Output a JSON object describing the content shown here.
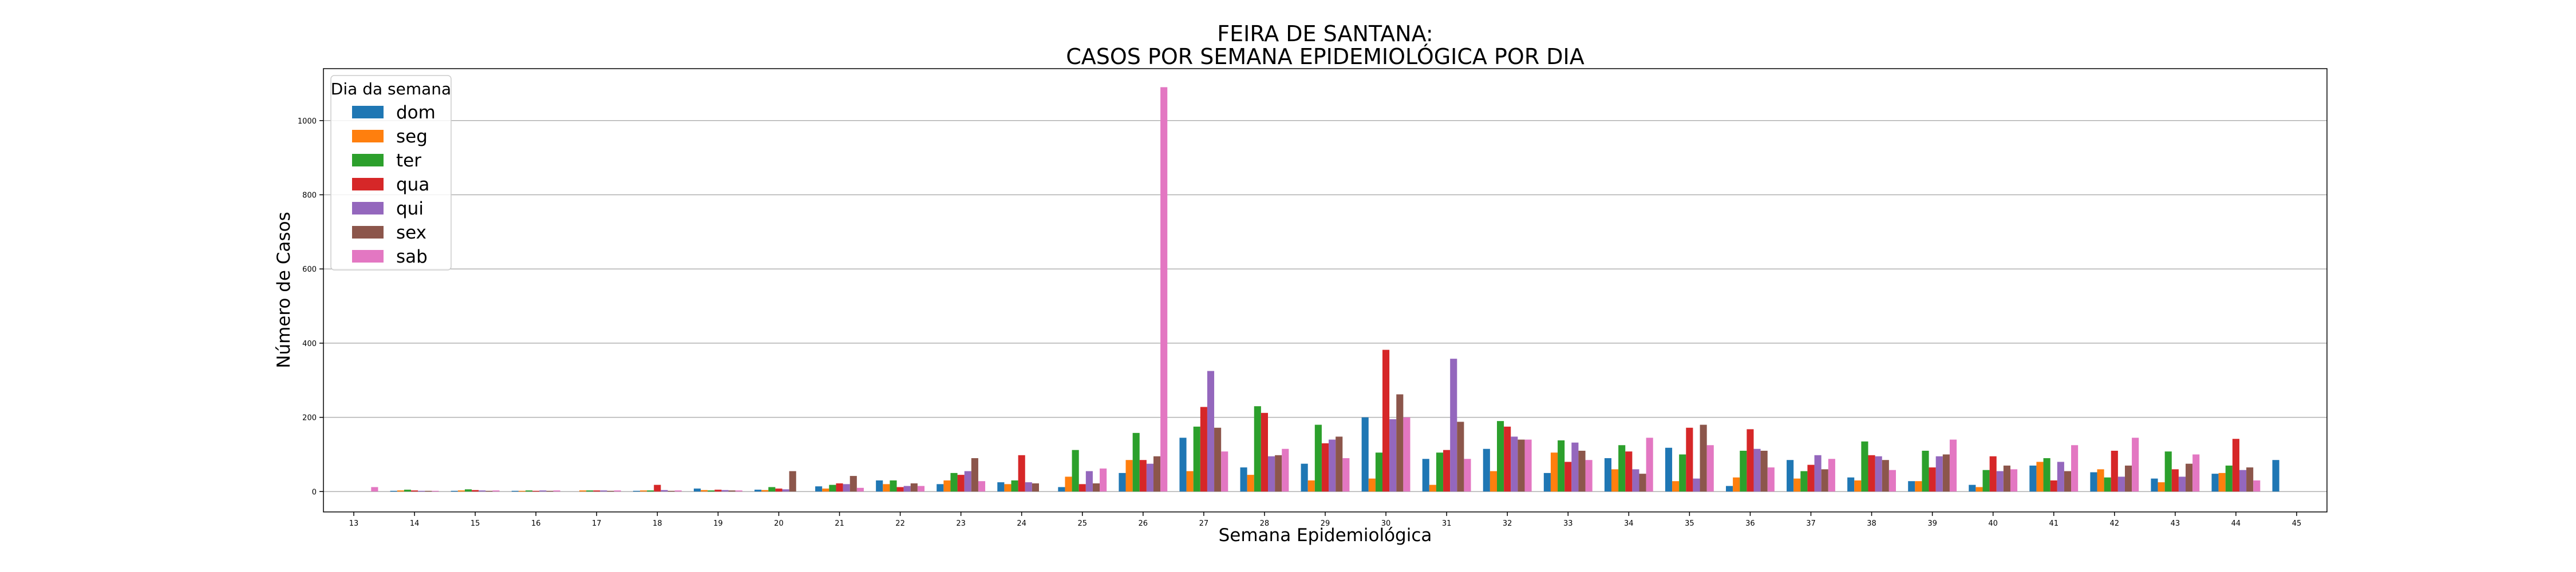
{
  "chart_data": {
    "type": "bar",
    "title": [
      "FEIRA DE SANTANA:",
      "CASOS POR SEMANA EPIDEMIOLÓGICA POR DIA"
    ],
    "xlabel": "Semana Epidemiológica",
    "ylabel": "Número de Casos",
    "ylim": [
      -55,
      1140
    ],
    "yticks": [
      0,
      200,
      400,
      600,
      800,
      1000
    ],
    "grid": "horizontal",
    "legend": {
      "title": "Dia da semana",
      "placement": "top-left"
    },
    "categories": [
      "13",
      "14",
      "15",
      "16",
      "17",
      "18",
      "19",
      "20",
      "21",
      "22",
      "23",
      "24",
      "25",
      "26",
      "27",
      "28",
      "29",
      "30",
      "31",
      "32",
      "33",
      "34",
      "35",
      "36",
      "37",
      "38",
      "39",
      "40",
      "41",
      "42",
      "43",
      "44",
      "45"
    ],
    "series": [
      {
        "name": "dom",
        "color": "#1f77b4",
        "values": [
          0,
          2,
          2,
          2,
          0,
          2,
          8,
          5,
          14,
          30,
          20,
          25,
          12,
          50,
          145,
          65,
          75,
          200,
          88,
          115,
          50,
          90,
          118,
          15,
          85,
          38,
          28,
          18,
          70,
          52,
          35,
          48,
          85
        ]
      },
      {
        "name": "seg",
        "color": "#ff7f0e",
        "values": [
          0,
          3,
          3,
          2,
          3,
          3,
          4,
          4,
          8,
          20,
          30,
          20,
          40,
          85,
          55,
          45,
          30,
          35,
          18,
          55,
          105,
          60,
          28,
          38,
          35,
          30,
          28,
          12,
          80,
          60,
          25,
          50,
          0
        ]
      },
      {
        "name": "ter",
        "color": "#2ca02c",
        "values": [
          0,
          5,
          6,
          3,
          3,
          3,
          3,
          12,
          18,
          30,
          50,
          30,
          112,
          158,
          175,
          230,
          180,
          105,
          105,
          190,
          138,
          125,
          100,
          110,
          55,
          135,
          110,
          58,
          90,
          38,
          108,
          70,
          0
        ]
      },
      {
        "name": "qua",
        "color": "#d62728",
        "values": [
          0,
          3,
          4,
          2,
          3,
          18,
          5,
          8,
          22,
          12,
          45,
          98,
          20,
          85,
          228,
          212,
          130,
          382,
          112,
          175,
          80,
          108,
          172,
          168,
          72,
          98,
          65,
          95,
          30,
          110,
          60,
          142,
          0
        ]
      },
      {
        "name": "qui",
        "color": "#9467bd",
        "values": [
          0,
          2,
          3,
          3,
          3,
          4,
          4,
          6,
          20,
          15,
          55,
          25,
          55,
          75,
          325,
          95,
          140,
          195,
          358,
          148,
          132,
          60,
          35,
          115,
          98,
          95,
          95,
          55,
          80,
          40,
          40,
          58,
          0
        ]
      },
      {
        "name": "sex",
        "color": "#8c564b",
        "values": [
          0,
          2,
          2,
          2,
          2,
          2,
          3,
          55,
          42,
          22,
          90,
          22,
          22,
          95,
          172,
          98,
          148,
          262,
          188,
          140,
          110,
          48,
          180,
          110,
          60,
          85,
          100,
          70,
          55,
          70,
          75,
          65,
          0
        ]
      },
      {
        "name": "sab",
        "color": "#e377c2",
        "values": [
          12,
          2,
          3,
          3,
          3,
          3,
          3,
          0,
          10,
          15,
          28,
          0,
          62,
          1090,
          108,
          115,
          90,
          200,
          88,
          140,
          85,
          145,
          125,
          65,
          88,
          58,
          140,
          60,
          125,
          145,
          100,
          30,
          0
        ]
      }
    ]
  }
}
